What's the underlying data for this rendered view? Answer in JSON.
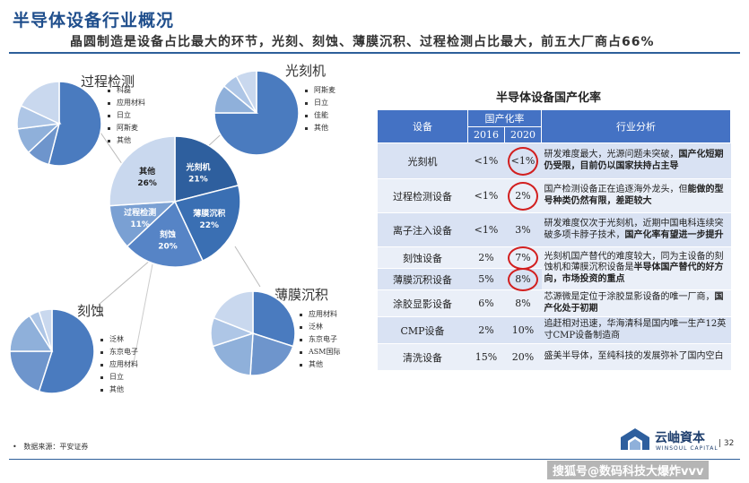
{
  "header": {
    "title": "半导体设备行业概况",
    "subtitle": "晶圆制造是设备占比最大的环节，光刻、刻蚀、薄膜沉积、过程检测占比最大，前五大厂商占66%"
  },
  "colors": {
    "dark_blue": "#2e5f9e",
    "mid_blue": "#4a7bbf",
    "light_blue": "#8fb0da",
    "pale_blue": "#c9d8ee",
    "accent_red": "#d21f1f",
    "table_header": "#4472c4"
  },
  "chart_data": [
    {
      "type": "pie",
      "id": "main",
      "labels": [
        "光刻机",
        "薄膜沉积",
        "刻蚀",
        "过程检测",
        "其他"
      ],
      "values": [
        21,
        22,
        20,
        11,
        26
      ],
      "value_labels": [
        "21%",
        "22%",
        "20%",
        "11%",
        "26%"
      ]
    },
    {
      "type": "pie",
      "id": "process_inspection",
      "title": "过程检测",
      "legend": [
        "科磊",
        "应用材料",
        "日立",
        "阿斯麦",
        "其他"
      ],
      "values": [
        54,
        9,
        10,
        9,
        18
      ]
    },
    {
      "type": "pie",
      "id": "lithography",
      "title": "光刻机",
      "legend": [
        "阿斯麦",
        "日立",
        "佳能",
        "其他"
      ],
      "values": [
        75,
        11,
        6,
        8
      ]
    },
    {
      "type": "pie",
      "id": "etching",
      "title": "刻蚀",
      "legend": [
        "泛林",
        "东京电子",
        "应用材料",
        "日立",
        "其他"
      ],
      "values": [
        55,
        20,
        16,
        4,
        5
      ]
    },
    {
      "type": "pie",
      "id": "thin_film",
      "title": "薄膜沉积",
      "legend": [
        "应用材料",
        "泛林",
        "东京电子",
        "ASM国际",
        "其他"
      ],
      "values": [
        30,
        21,
        19,
        11,
        19
      ]
    },
    {
      "type": "table",
      "title": "半导体设备国产化率",
      "headers": {
        "equipment": "设备",
        "rate": "国产化率",
        "y2016": "2016",
        "y2020": "2020",
        "analysis": "行业分析"
      },
      "rows": [
        {
          "equipment": "光刻机",
          "y2016": "<1%",
          "y2020": "<1%",
          "highlight": true,
          "analysis_plain": "研发难度最大，光源问题未突破，",
          "analysis_bold": "国产化短期仍受限，目前仍以国家扶持占主导"
        },
        {
          "equipment": "过程检测设备",
          "y2016": "<1%",
          "y2020": "2%",
          "highlight": true,
          "analysis_plain": "国产检测设备正在追逐海外龙头，但",
          "analysis_bold": "能做的型号种类仍然有限，差距较大"
        },
        {
          "equipment": "离子注入设备",
          "y2016": "<1%",
          "y2020": "3%",
          "highlight": false,
          "analysis_plain": "研发难度仅次于光刻机，近期中国电科连续突破多项卡脖子技术，",
          "analysis_bold": "国产化率有望进一步提升"
        },
        {
          "equipment": "刻蚀设备",
          "y2016": "2%",
          "y2020": "7%",
          "highlight": true,
          "analysis_plain": "光刻机国产替代的难度较大，同为主设备的刻蚀机和薄膜沉积设备是",
          "analysis_bold": "半导体国产替代的好方向，市场投资的重点"
        },
        {
          "equipment": "薄膜沉积设备",
          "y2016": "5%",
          "y2020": "8%",
          "highlight": true,
          "analysis_plain": "",
          "analysis_bold": ""
        },
        {
          "equipment": "涂胶显影设备",
          "y2016": "6%",
          "y2020": "8%",
          "highlight": false,
          "analysis_plain": "芯源微是定位于涂胶显影设备的唯一厂商，",
          "analysis_bold": "国产化处于初期"
        },
        {
          "equipment": "CMP设备",
          "y2016": "2%",
          "y2020": "10%",
          "highlight": false,
          "analysis_plain": "追赶相对迅速，华海清科是国内唯一生产12英寸CMP设备制造商",
          "analysis_bold": ""
        },
        {
          "equipment": "清洗设备",
          "y2016": "15%",
          "y2020": "20%",
          "highlight": false,
          "analysis_plain": "盛美半导体，至纯科技的发展弥补了国内空白",
          "analysis_bold": ""
        }
      ]
    }
  ],
  "footer": {
    "source": "数据来源：平安证券",
    "brand": "云岫資本",
    "brand_en": "WINSOUL CAPITAL",
    "page": "32",
    "watermark": "搜狐号@数码科技大爆炸vvv"
  }
}
